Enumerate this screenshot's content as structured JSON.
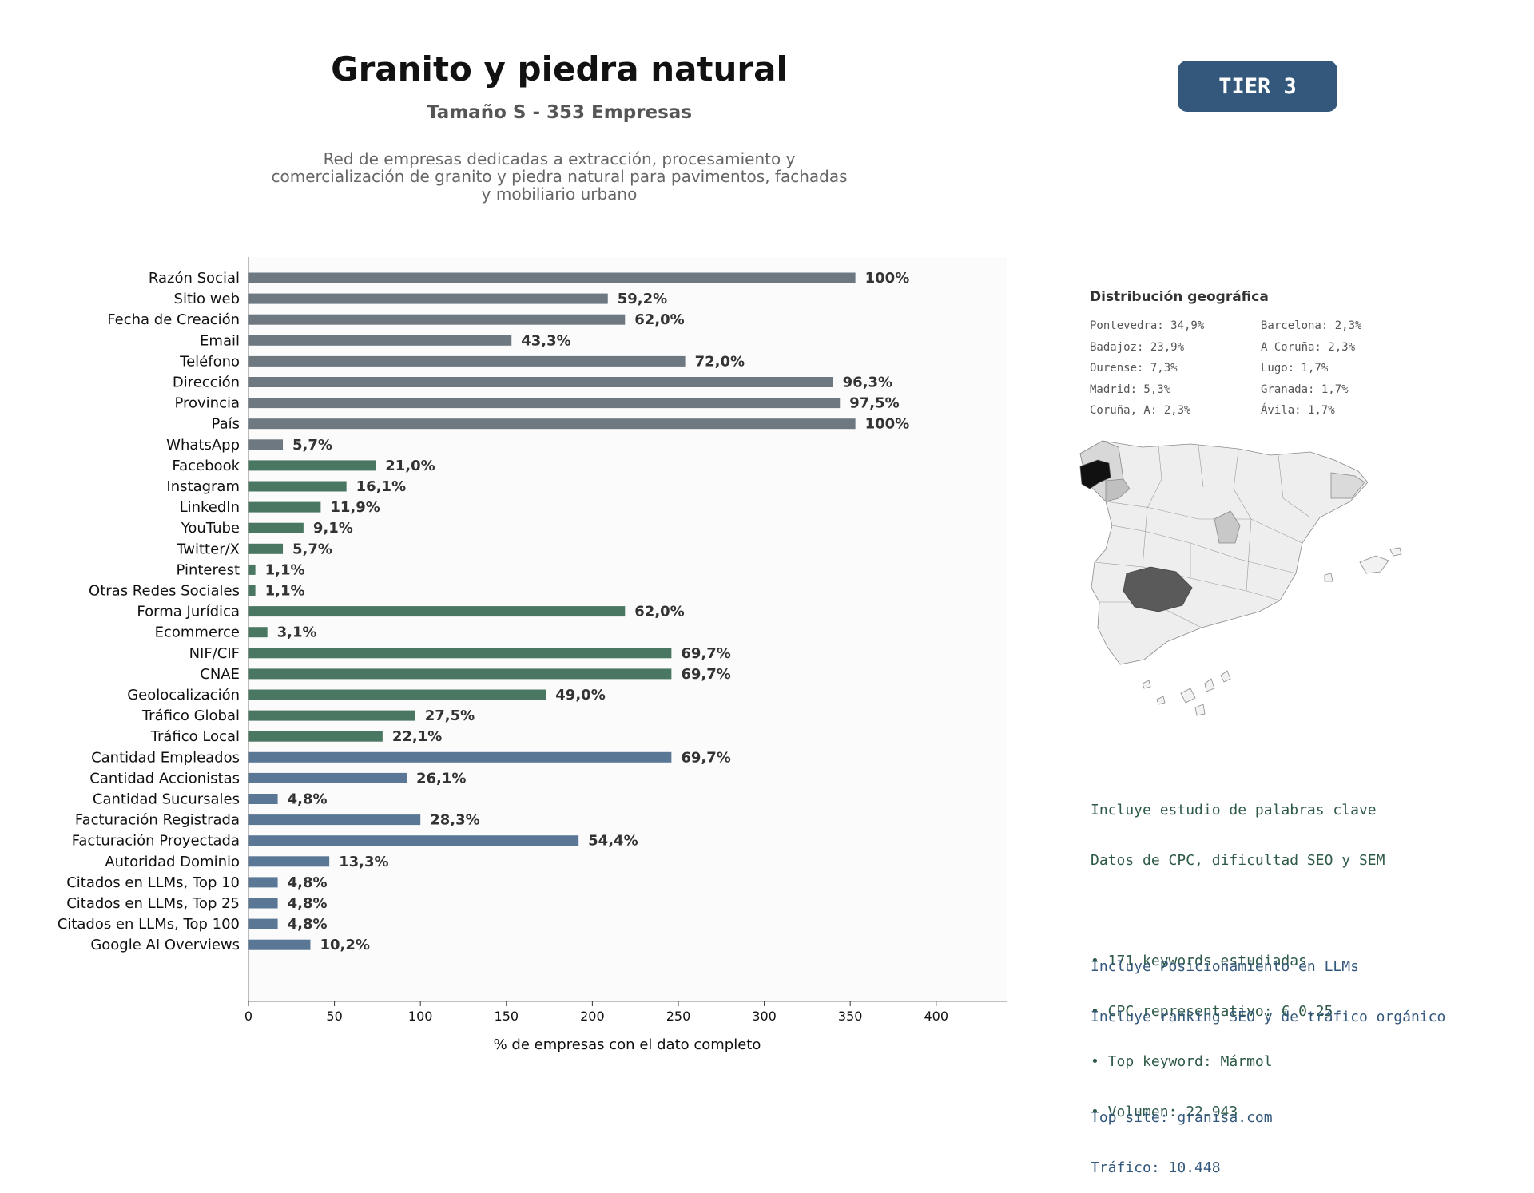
{
  "header": {
    "title": "Granito y piedra natural",
    "subtitle": "Tamaño S - 353 Empresas",
    "description_lines": [
      "Red de empresas dedicadas a extracción, procesamiento y",
      "comercialización de granito y piedra natural para pavimentos, fachadas",
      "y mobiliario urbano"
    ],
    "tier_badge": "TIER 3"
  },
  "chart_data": {
    "type": "bar",
    "orientation": "horizontal",
    "xlabel": "% de empresas con el dato completo",
    "xlim": [
      0,
      441
    ],
    "xticks": [
      0,
      50,
      100,
      150,
      200,
      250,
      300,
      350,
      400
    ],
    "grid": "vertical dashed",
    "colors": {
      "basic": "#6e7881",
      "digital": "#4a7762",
      "business": "#5a7895"
    },
    "categories": [
      "Razón Social",
      "Sitio web",
      "Fecha de Creación",
      "Email",
      "Teléfono",
      "Dirección",
      "Provincia",
      "País",
      "WhatsApp",
      "Facebook",
      "Instagram",
      "LinkedIn",
      "YouTube",
      "Twitter/X",
      "Pinterest",
      "Otras Redes Sociales",
      "Forma Jurídica",
      "Ecommerce",
      "NIF/CIF",
      "CNAE",
      "Geolocalización",
      "Tráfico Global",
      "Tráfico Local",
      "Cantidad Empleados",
      "Cantidad Accionistas",
      "Cantidad Sucursales",
      "Facturación Registrada",
      "Facturación Proyectada",
      "Autoridad Dominio",
      "Citados en LLMs, Top 10",
      "Citados en LLMs, Top 25",
      "Citados en LLMs, Top 100",
      "Google AI Overviews"
    ],
    "values": [
      353,
      209,
      219,
      153,
      254,
      340,
      344,
      353,
      20,
      74,
      57,
      42,
      32,
      20,
      4,
      4,
      219,
      11,
      246,
      246,
      173,
      97,
      78,
      246,
      92,
      17,
      100,
      192,
      47,
      17,
      17,
      17,
      36
    ],
    "labels": [
      "100%",
      "59,2%",
      "62,0%",
      "43,3%",
      "72,0%",
      "96,3%",
      "97,5%",
      "100%",
      "5,7%",
      "21,0%",
      "16,1%",
      "11,9%",
      "9,1%",
      "5,7%",
      "1,1%",
      "1,1%",
      "62,0%",
      "3,1%",
      "69,7%",
      "69,7%",
      "49,0%",
      "27,5%",
      "22,1%",
      "69,7%",
      "26,1%",
      "4,8%",
      "28,3%",
      "54,4%",
      "13,3%",
      "4,8%",
      "4,8%",
      "4,8%",
      "10,2%"
    ],
    "groups": [
      "basic",
      "basic",
      "basic",
      "basic",
      "basic",
      "basic",
      "basic",
      "basic",
      "basic",
      "digital",
      "digital",
      "digital",
      "digital",
      "digital",
      "digital",
      "digital",
      "digital",
      "digital",
      "digital",
      "digital",
      "digital",
      "digital",
      "digital",
      "business",
      "business",
      "business",
      "business",
      "business",
      "business",
      "business",
      "business",
      "business",
      "business"
    ]
  },
  "geo": {
    "title": "Distribución geográfica",
    "left": [
      "Pontevedra: 34,9%",
      "Badajoz: 23,9%",
      "Ourense: 7,3%",
      "Madrid: 5,3%",
      "Coruña, A: 2,3%"
    ],
    "right": [
      "Barcelona: 2,3%",
      "A Coruña: 2,3%",
      "Lugo: 1,7%",
      "Granada: 1,7%",
      "Ávila: 1,7%"
    ]
  },
  "keywords": {
    "line1": "Incluye estudio de palabras clave",
    "line2": "Datos de CPC, dificultad SEO y SEM",
    "bullets": [
      "• 171 keywords estudiadas",
      "• CPC representativo: € 0.25",
      "• Top keyword: Mármol",
      "• Volumen: 22.943"
    ]
  },
  "llm": {
    "line1": "Incluye Posicionamiento en LLMs",
    "line2": "Incluye ranking SEO y de tráfico orgánico",
    "top_site": "Top site: granisa.com",
    "traffic": "Tráfico: 10.448"
  }
}
